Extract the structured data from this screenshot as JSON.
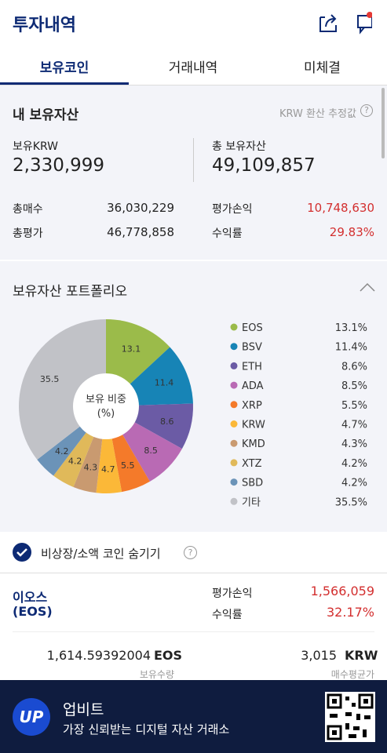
{
  "header": {
    "title": "투자내역"
  },
  "tabs": [
    "보유코인",
    "거래내역",
    "미체결"
  ],
  "summary": {
    "title": "내 보유자산",
    "note": "KRW 환산 추정값",
    "krw_label": "보유KRW",
    "krw_value": "2,330,999",
    "total_label": "총 보유자산",
    "total_value": "49,109,857",
    "rows": [
      {
        "label": "총매수",
        "value": "36,030,229"
      },
      {
        "label": "평가손익",
        "value": "10,748,630"
      },
      {
        "label": "총평가",
        "value": "46,778,858"
      },
      {
        "label": "수익률",
        "value": "29.83%"
      }
    ]
  },
  "portfolio": {
    "title": "보유자산 포트폴리오",
    "chart": {
      "type": "pie",
      "center_label": [
        "보유 비중",
        "(%)"
      ],
      "categories": [
        "EOS",
        "BSV",
        "ETH",
        "ADA",
        "XRP",
        "KRW",
        "KMD",
        "XTZ",
        "SBD",
        "기타"
      ],
      "values": [
        13.1,
        11.4,
        8.6,
        8.5,
        5.5,
        4.7,
        4.3,
        4.2,
        4.2,
        35.5
      ],
      "value_labels": [
        "13.1%",
        "11.4%",
        "8.6%",
        "8.5%",
        "5.5%",
        "4.7%",
        "4.3%",
        "4.2%",
        "4.2%",
        "35.5%"
      ],
      "colors": [
        "#9bbb4a",
        "#1784b6",
        "#6b5ba5",
        "#b96ab4",
        "#f47a2a",
        "#fbb838",
        "#c99a70",
        "#e0b95a",
        "#6b93b8",
        "#c1c2c7"
      ]
    }
  },
  "filter": {
    "label": "비상장/소액 코인 숨기기"
  },
  "coin": {
    "name": "이오스",
    "symbol": "(EOS)",
    "pl_label": "평가손익",
    "pl_value": "1,566,059",
    "rate_label": "수익률",
    "rate_value": "32.17%",
    "qty": "1,614.59392004",
    "qty_unit": "EOS",
    "qty_label": "보유수량",
    "avg": "3,015",
    "avg_unit": "KRW",
    "avg_label": "매수평균가"
  },
  "banner": {
    "logo": "UP",
    "title": "업비트",
    "subtitle": "가장 신뢰받는 디지털 자산 거래소"
  }
}
